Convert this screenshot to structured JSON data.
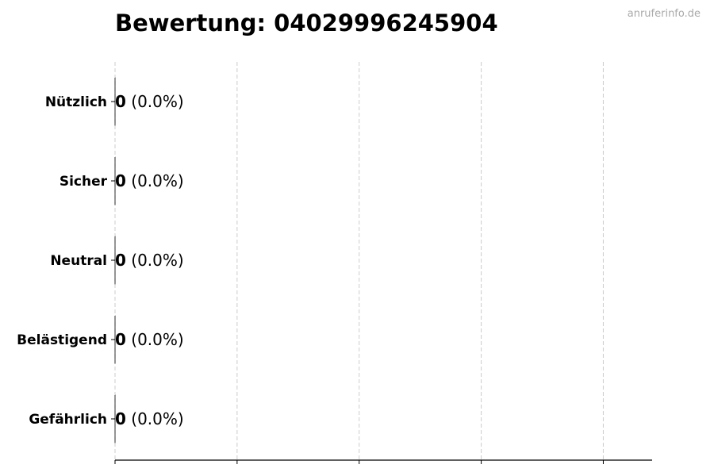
{
  "watermark": "anruferinfo.de",
  "chart_data": {
    "type": "bar",
    "orientation": "horizontal",
    "title": "Bewertung: 04029996245904",
    "categories": [
      "Nützlich",
      "Sicher",
      "Neutral",
      "Belästigend",
      "Gefährlich"
    ],
    "values": [
      0,
      0,
      0,
      0,
      0
    ],
    "percent_labels": [
      "(0.0%)",
      "(0.0%)",
      "(0.0%)",
      "(0.0%)",
      "(0.0%)"
    ],
    "xlabel": "",
    "ylabel": "",
    "xlim": [
      0,
      4.4
    ],
    "xticks": [
      0,
      1,
      2,
      3,
      4
    ],
    "x_tick_labels_shown": false,
    "grid": "x, dashed",
    "legend": "none",
    "colors": {
      "bar_edge": "#000000",
      "grid": "#cccccc",
      "watermark": "#aaaaaa"
    }
  }
}
